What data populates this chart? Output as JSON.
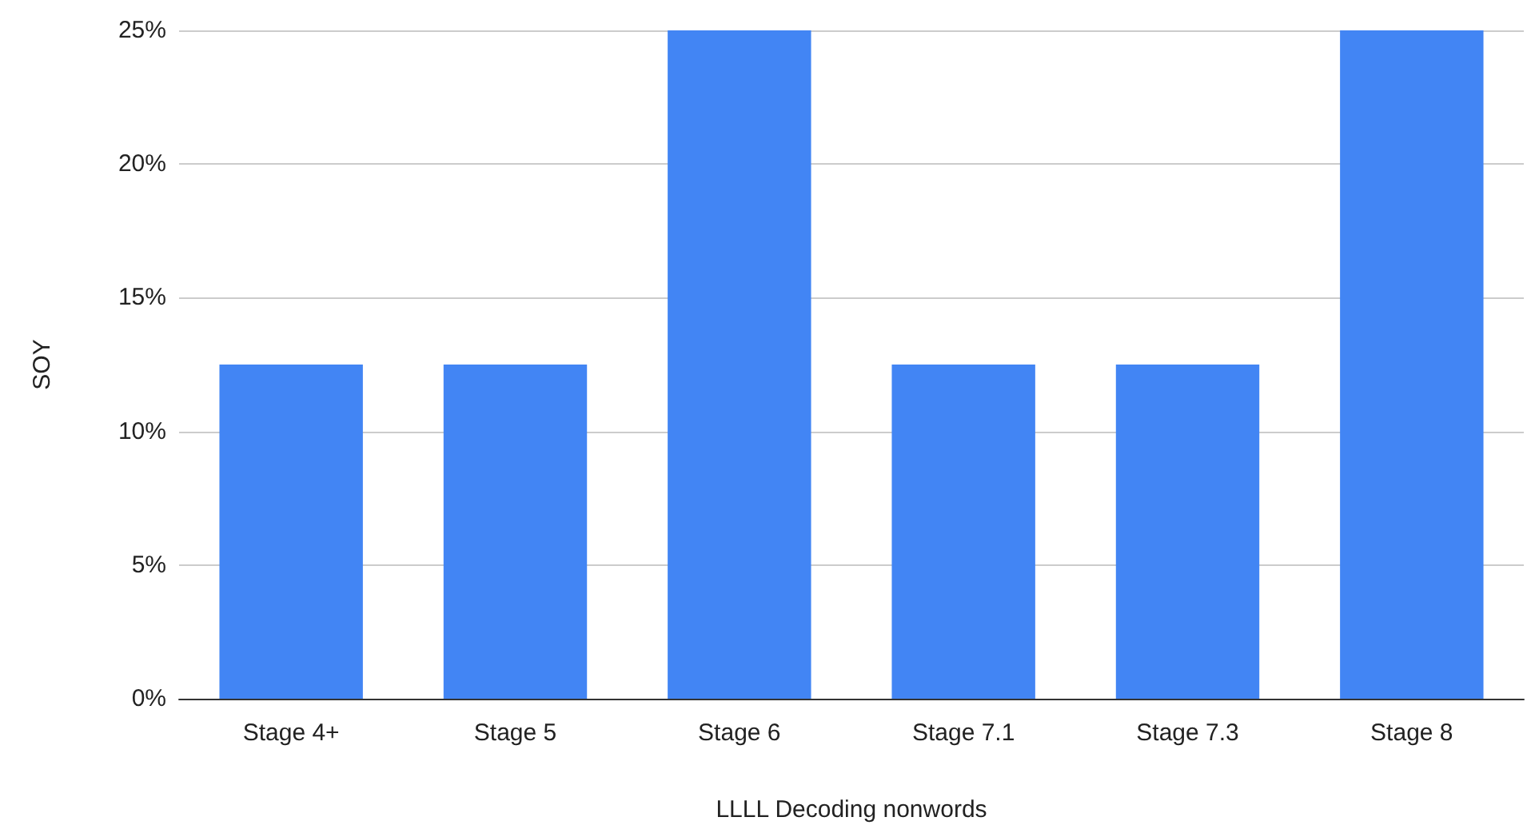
{
  "chart_data": {
    "type": "bar",
    "xlabel": "LLLL Decoding nonwords",
    "ylabel": "SOY",
    "categories": [
      "Stage 4+",
      "Stage 5",
      "Stage 6",
      "Stage 7.1",
      "Stage 7.3",
      "Stage 8"
    ],
    "values": [
      12.5,
      12.5,
      25,
      12.5,
      12.5,
      25
    ],
    "color": "#4285f4",
    "ylim": [
      0,
      25
    ],
    "yticks": [
      {
        "value": 0,
        "label": "0%"
      },
      {
        "value": 5,
        "label": "5%"
      },
      {
        "value": 10,
        "label": "10%"
      },
      {
        "value": 15,
        "label": "15%"
      },
      {
        "value": 20,
        "label": "20%"
      },
      {
        "value": 25,
        "label": "25%"
      }
    ],
    "grid": "y"
  }
}
